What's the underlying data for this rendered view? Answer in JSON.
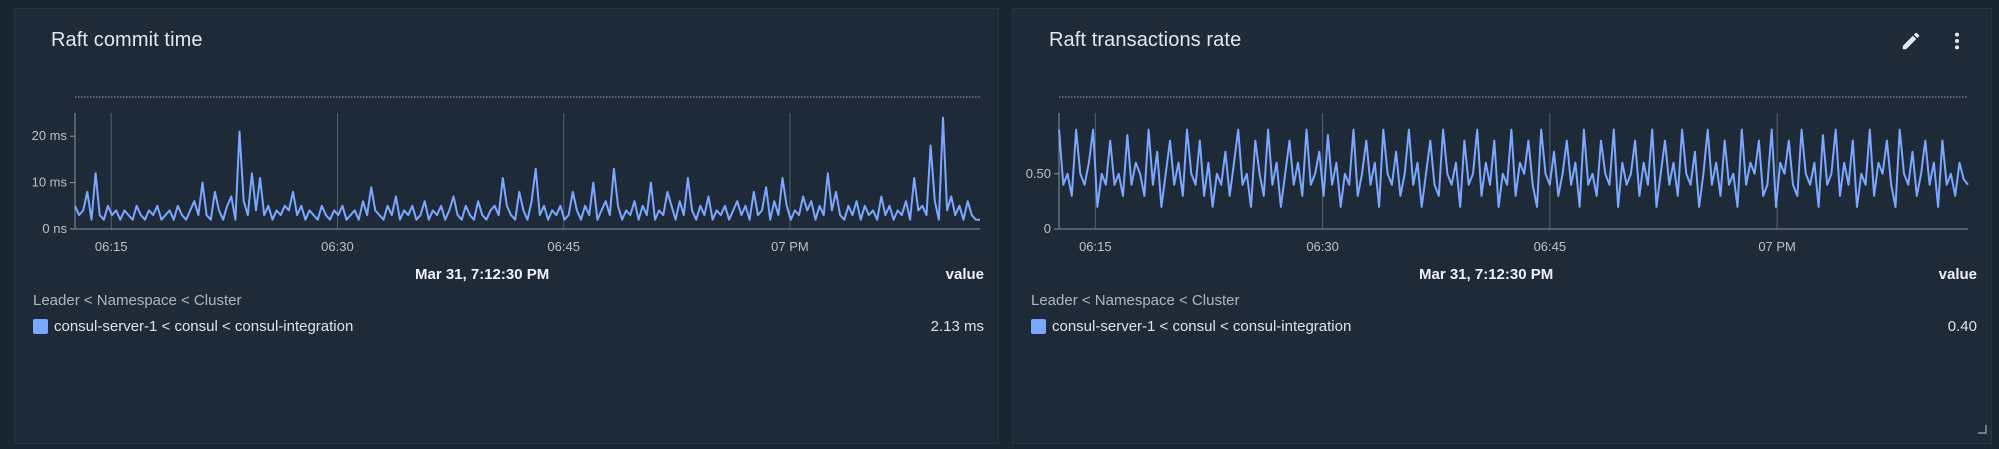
{
  "panels": [
    {
      "title": "Raft commit time",
      "legend_header": "Leader < Namespace < Cluster",
      "time_label": "Mar 31, 7:12:30 PM",
      "value_header": "value",
      "legend_series": "consul-server-1 < consul < consul-integration",
      "legend_value": "2.13 ms",
      "chart_data": {
        "type": "line",
        "title": "",
        "xlabel": "",
        "ylabel": "",
        "x_ticks": [
          "06:15",
          "06:30",
          "06:45",
          "07 PM"
        ],
        "y_ticks": [
          "0 ns",
          "10 ms",
          "20 ms"
        ],
        "ylim": [
          0,
          25
        ],
        "series": [
          {
            "values": [
              5,
              3,
              4,
              8,
              2,
              12,
              3,
              2,
              5,
              3,
              4,
              2,
              4,
              3,
              2,
              5,
              3,
              2,
              4,
              3,
              5,
              2,
              3,
              4,
              2,
              5,
              3,
              2,
              4,
              6,
              3,
              10,
              3,
              2,
              8,
              4,
              2,
              5,
              7,
              2,
              21,
              6,
              3,
              12,
              4,
              11,
              3,
              5,
              2,
              4,
              3,
              5,
              4,
              8,
              3,
              5,
              2,
              4,
              3,
              2,
              5,
              3,
              2,
              4,
              3,
              5,
              2,
              3,
              4,
              2,
              6,
              3,
              9,
              4,
              3,
              2,
              5,
              3,
              7,
              2,
              4,
              3,
              5,
              2,
              3,
              6,
              2,
              4,
              3,
              5,
              2,
              4,
              7,
              3,
              2,
              5,
              3,
              2,
              6,
              3,
              2,
              4,
              5,
              3,
              11,
              5,
              3,
              2,
              8,
              4,
              2,
              6,
              13,
              3,
              5,
              2,
              4,
              3,
              5,
              2,
              3,
              8,
              4,
              2,
              5,
              3,
              10,
              2,
              4,
              6,
              3,
              13,
              5,
              2,
              4,
              3,
              6,
              2,
              5,
              3,
              10,
              2,
              4,
              3,
              8,
              5,
              2,
              6,
              3,
              11,
              4,
              2,
              5,
              3,
              7,
              2,
              4,
              3,
              5,
              2,
              4,
              6,
              3,
              5,
              2,
              8,
              3,
              4,
              9,
              2,
              6,
              3,
              11,
              5,
              2,
              4,
              3,
              7,
              4,
              6,
              2,
              5,
              3,
              12,
              4,
              8,
              3,
              2,
              5,
              3,
              6,
              2,
              5,
              3,
              4,
              2,
              7,
              3,
              5,
              2,
              4,
              3,
              6,
              2,
              11,
              4,
              5,
              3,
              18,
              6,
              2,
              24,
              4,
              7,
              3,
              5,
              2,
              6,
              3,
              2,
              2
            ]
          }
        ]
      }
    },
    {
      "title": "Raft transactions rate",
      "legend_header": "Leader < Namespace < Cluster",
      "time_label": "Mar 31, 7:12:30 PM",
      "value_header": "value",
      "legend_series": "consul-server-1 < consul < consul-integration",
      "legend_value": "0.40",
      "chart_data": {
        "type": "line",
        "title": "",
        "xlabel": "",
        "ylabel": "",
        "x_ticks": [
          "06:15",
          "06:30",
          "06:45",
          "07 PM"
        ],
        "y_ticks": [
          "0",
          "0.50"
        ],
        "ylim": [
          0,
          1.05
        ],
        "series": [
          {
            "values": [
              0.9,
              0.4,
              0.5,
              0.3,
              0.9,
              0.5,
              0.4,
              0.6,
              0.9,
              0.2,
              0.5,
              0.4,
              0.8,
              0.4,
              0.5,
              0.3,
              0.85,
              0.4,
              0.6,
              0.5,
              0.3,
              0.9,
              0.4,
              0.7,
              0.2,
              0.5,
              0.8,
              0.4,
              0.6,
              0.3,
              0.9,
              0.5,
              0.4,
              0.8,
              0.3,
              0.6,
              0.2,
              0.5,
              0.4,
              0.7,
              0.3,
              0.6,
              0.9,
              0.4,
              0.5,
              0.2,
              0.8,
              0.5,
              0.3,
              0.9,
              0.4,
              0.6,
              0.2,
              0.5,
              0.8,
              0.4,
              0.6,
              0.3,
              0.9,
              0.4,
              0.5,
              0.7,
              0.3,
              0.85,
              0.4,
              0.6,
              0.2,
              0.5,
              0.4,
              0.9,
              0.3,
              0.5,
              0.8,
              0.4,
              0.6,
              0.2,
              0.9,
              0.5,
              0.4,
              0.7,
              0.3,
              0.5,
              0.9,
              0.4,
              0.6,
              0.2,
              0.5,
              0.8,
              0.4,
              0.3,
              0.9,
              0.5,
              0.4,
              0.6,
              0.2,
              0.8,
              0.4,
              0.5,
              0.9,
              0.3,
              0.6,
              0.4,
              0.8,
              0.2,
              0.5,
              0.4,
              0.9,
              0.3,
              0.6,
              0.5,
              0.8,
              0.4,
              0.2,
              0.9,
              0.5,
              0.4,
              0.7,
              0.3,
              0.5,
              0.8,
              0.4,
              0.6,
              0.2,
              0.9,
              0.4,
              0.5,
              0.3,
              0.8,
              0.5,
              0.4,
              0.9,
              0.2,
              0.6,
              0.4,
              0.5,
              0.8,
              0.3,
              0.6,
              0.4,
              0.9,
              0.2,
              0.5,
              0.8,
              0.4,
              0.6,
              0.3,
              0.9,
              0.5,
              0.4,
              0.7,
              0.2,
              0.5,
              0.9,
              0.4,
              0.6,
              0.3,
              0.8,
              0.4,
              0.5,
              0.2,
              0.9,
              0.4,
              0.6,
              0.5,
              0.8,
              0.3,
              0.4,
              0.9,
              0.2,
              0.6,
              0.5,
              0.8,
              0.4,
              0.3,
              0.9,
              0.5,
              0.4,
              0.6,
              0.2,
              0.85,
              0.4,
              0.5,
              0.9,
              0.3,
              0.6,
              0.4,
              0.8,
              0.2,
              0.5,
              0.4,
              0.9,
              0.3,
              0.6,
              0.5,
              0.8,
              0.4,
              0.2,
              0.9,
              0.5,
              0.4,
              0.7,
              0.3,
              0.5,
              0.8,
              0.4,
              0.6,
              0.2,
              0.8,
              0.4,
              0.5,
              0.3,
              0.6,
              0.45,
              0.4
            ]
          }
        ]
      }
    }
  ],
  "colors": {
    "series": "#7aa7ff",
    "axis": "#8a94a3",
    "grid": "#556070",
    "threshold": "#9aa3b0"
  },
  "icons": {
    "edit": "pencil-icon",
    "menu": "kebab-menu-icon",
    "resize": "resize-handle-icon"
  }
}
